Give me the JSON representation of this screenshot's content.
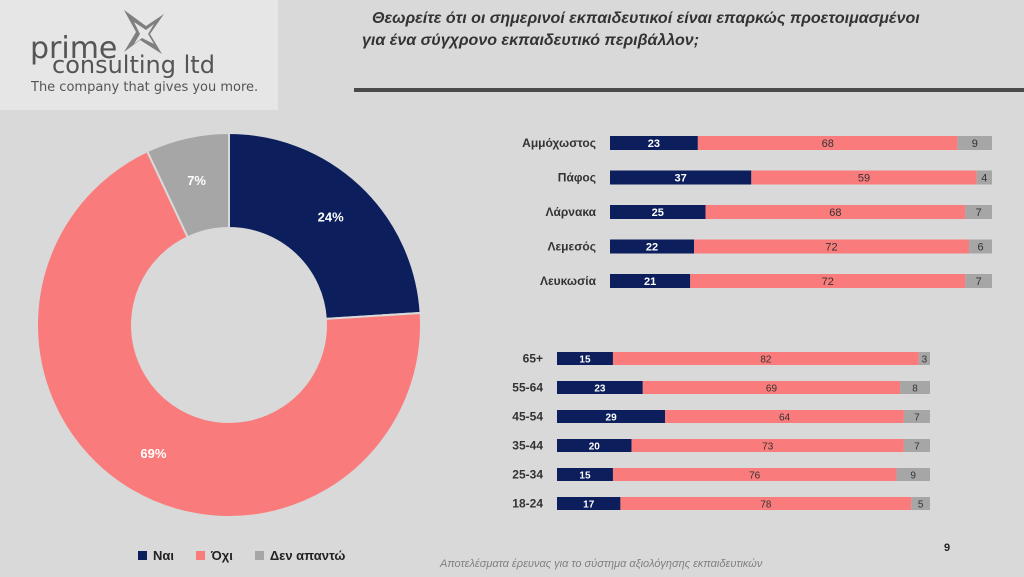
{
  "logo": {
    "line1": "prime",
    "line2": "consulting ltd",
    "tagline": "The company that gives you more."
  },
  "title": {
    "line1": "Θεωρείτε ότι οι σημερινοί εκπαιδευτικοί είναι επαρκώς προετοιμασμένοι",
    "line2": "για ένα σύγχρονο εκπαιδευτικό περιβάλλον;"
  },
  "colors": {
    "yes": "#0c1f5c",
    "no": "#fa7b7b",
    "dk": "#a6a6a6"
  },
  "legend": [
    {
      "label": "Ναι",
      "color": "#0c1f5c"
    },
    {
      "label": "Όχι",
      "color": "#fa7b7b"
    },
    {
      "label": "Δεν απαντώ",
      "color": "#a6a6a6"
    }
  ],
  "footer": "Αποτελέσματα έρευνας για το σύστημα αξιολόγησης εκπαιδευτικών",
  "page_number": "9",
  "chart_data": [
    {
      "type": "pie",
      "donut": true,
      "labels": [
        "Ναι",
        "Όχι",
        "Δεν απαντώ"
      ],
      "values": [
        24,
        69,
        7
      ],
      "value_labels": [
        "24%",
        "69%",
        "7%"
      ]
    },
    {
      "type": "bar",
      "orientation": "horizontal",
      "stacked": true,
      "categories": [
        "Αμμόχωστος",
        "Πάφος",
        "Λάρνακα",
        "Λεμεσός",
        "Λευκωσία"
      ],
      "series": [
        {
          "name": "Ναι",
          "values": [
            23,
            37,
            25,
            22,
            21
          ]
        },
        {
          "name": "Όχι",
          "values": [
            68,
            59,
            68,
            72,
            72
          ]
        },
        {
          "name": "Δεν απαντώ",
          "values": [
            9,
            4,
            7,
            6,
            7
          ]
        }
      ]
    },
    {
      "type": "bar",
      "orientation": "horizontal",
      "stacked": true,
      "categories": [
        "65+",
        "55-64",
        "45-54",
        "35-44",
        "25-34",
        "18-24"
      ],
      "series": [
        {
          "name": "Ναι",
          "values": [
            15,
            23,
            29,
            20,
            15,
            17
          ]
        },
        {
          "name": "Όχι",
          "values": [
            82,
            69,
            64,
            73,
            76,
            78
          ]
        },
        {
          "name": "Δεν απαντώ",
          "values": [
            3,
            8,
            7,
            7,
            9,
            5
          ]
        }
      ]
    }
  ]
}
